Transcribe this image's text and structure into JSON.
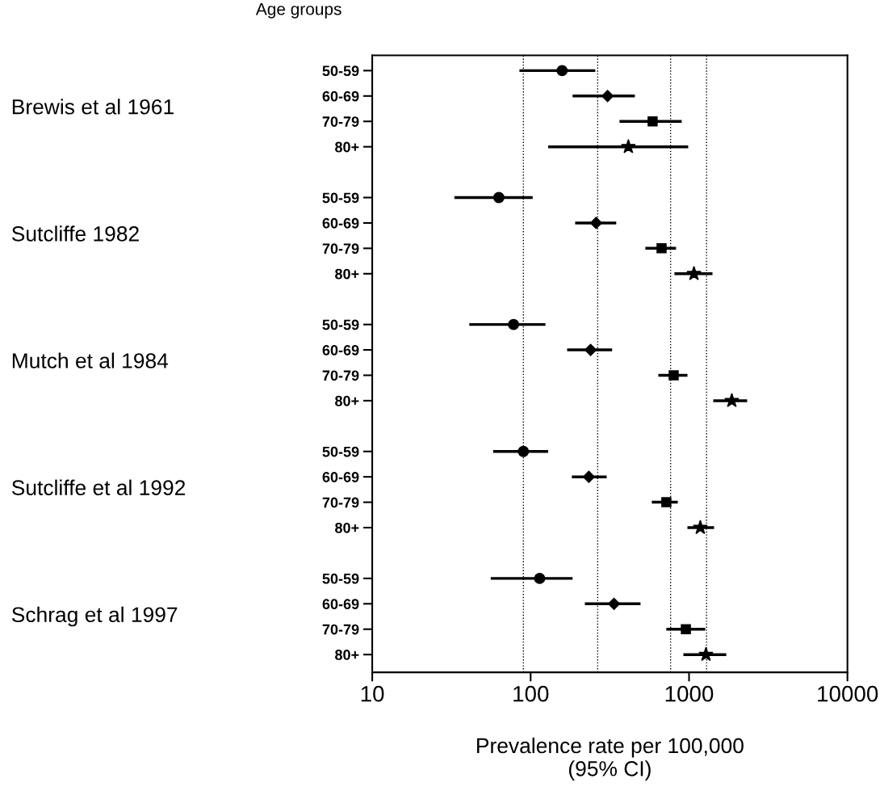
{
  "chart_data": {
    "type": "scatter",
    "orientation": "horizontal",
    "log": "x",
    "ylabel": "Age groups",
    "xlabel": "Prevalence rate per 100,000\n(95% CI)",
    "categories": [
      "50-59",
      "60-69",
      "70-79",
      "80+",
      null,
      "50-59",
      "60-69",
      "70-79",
      "80+",
      null,
      "50-59",
      "60-69",
      "70-79",
      "80+",
      null,
      "50-59",
      "60-69",
      "70-79",
      "80+",
      null,
      "50-59",
      "60-69",
      "70-79",
      "80+"
    ],
    "annotations": [
      "Brewis et al 1961",
      "Sutcliffe 1982",
      "Mutch et al 1984",
      "Sutcliffe et al 1992",
      "Schrag et al 1997"
    ],
    "xlim": [
      10,
      10000
    ],
    "xticks": [
      10,
      100,
      1000,
      10000
    ],
    "grid": false,
    "legend": false,
    "ref_lines": [
      {
        "axis": "x",
        "value": 90,
        "color": "#000000",
        "line_style": "dotted"
      },
      {
        "axis": "x",
        "value": 265,
        "color": "#000000",
        "line_style": "dotted"
      },
      {
        "axis": "x",
        "value": 765,
        "color": "#000000",
        "line_style": "dotted"
      },
      {
        "axis": "x",
        "value": 1290,
        "color": "#000000",
        "line_style": "dotted"
      }
    ],
    "series": [
      {
        "color": "#000000",
        "marker": "circle",
        "values": [
          158,
          null,
          null,
          null,
          null,
          63,
          null,
          null,
          null,
          null,
          78,
          null,
          null,
          null,
          null,
          90,
          null,
          null,
          null,
          null,
          114,
          null,
          null,
          null
        ],
        "errors": [
          [
            85,
            256
          ],
          null,
          null,
          null,
          null,
          [
            33,
            103
          ],
          null,
          null,
          null,
          null,
          [
            41,
            124
          ],
          null,
          null,
          null,
          null,
          [
            58,
            129
          ],
          null,
          null,
          null,
          null,
          [
            56,
            184
          ],
          null,
          null,
          null
        ]
      },
      {
        "color": "#000000",
        "marker": "diamond",
        "values": [
          null,
          306,
          null,
          null,
          null,
          null,
          259,
          null,
          null,
          null,
          null,
          239,
          null,
          null,
          null,
          null,
          233,
          null,
          null,
          null,
          null,
          336,
          null,
          null
        ],
        "errors": [
          null,
          [
            184,
            455
          ],
          null,
          null,
          null,
          null,
          [
            191,
            347
          ],
          null,
          null,
          null,
          null,
          [
            170,
            327
          ],
          null,
          null,
          null,
          null,
          [
            182,
            302
          ],
          null,
          null,
          null,
          null,
          [
            220,
            494
          ],
          null,
          null
        ]
      },
      {
        "color": "#000000",
        "marker": "square",
        "values": [
          null,
          null,
          589,
          null,
          null,
          null,
          null,
          671,
          null,
          null,
          null,
          null,
          800,
          null,
          null,
          null,
          null,
          719,
          null,
          null,
          null,
          null,
          955,
          null
        ],
        "errors": [
          null,
          null,
          [
            364,
            899
          ],
          null,
          null,
          null,
          null,
          [
            530,
            828
          ],
          null,
          null,
          null,
          null,
          [
            640,
            977
          ],
          null,
          null,
          null,
          null,
          [
            582,
            849
          ],
          null,
          null,
          null,
          null,
          [
            719,
            1265
          ],
          null
        ]
      },
      {
        "color": "#000000",
        "marker": "star",
        "values": [
          null,
          null,
          null,
          414,
          null,
          null,
          null,
          null,
          1074,
          null,
          null,
          null,
          null,
          1862,
          null,
          null,
          null,
          null,
          1178,
          null,
          null,
          null,
          null,
          1279
        ],
        "errors": [
          null,
          null,
          null,
          [
            129,
            988
          ],
          null,
          null,
          null,
          null,
          [
            809,
            1406
          ],
          null,
          null,
          null,
          null,
          [
            1422,
            2328
          ],
          null,
          null,
          null,
          null,
          [
            977,
            1439
          ],
          null,
          null,
          null,
          null,
          [
            921,
            1718
          ]
        ]
      }
    ]
  }
}
